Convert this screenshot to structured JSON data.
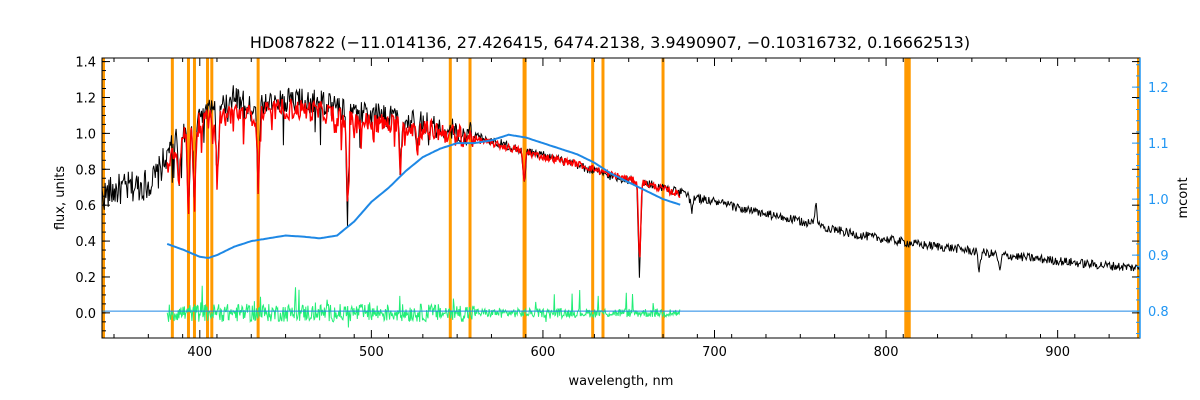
{
  "chart_data": {
    "type": "line",
    "title": "HD087822   (−11.014136, 27.426415, 6474.2138, 3.9490907, −0.10316732, 0.16662513)",
    "xlabel": "wavelength, nm",
    "ylabel": "flux, units",
    "y2label": "mcont",
    "xlim": [
      343,
      948
    ],
    "ylim": [
      -0.14,
      1.42
    ],
    "y2lim": [
      0.752,
      1.252
    ],
    "x_ticks": [
      400,
      500,
      600,
      700,
      800,
      900
    ],
    "y_ticks": [
      0.0,
      0.2,
      0.4,
      0.6,
      0.8,
      1.0,
      1.2,
      1.4
    ],
    "y_tick_labels": [
      "0.0",
      "0.2",
      "0.4",
      "0.6",
      "0.8",
      "1.0",
      "1.2",
      "1.4"
    ],
    "y2_ticks": [
      0.8,
      0.9,
      1.0,
      1.1,
      1.2
    ],
    "y2_tick_labels": [
      "0.8",
      "0.9",
      "1.0",
      "1.1",
      "1.2"
    ],
    "masked_lines_nm": [
      384,
      393.4,
      396.9,
      404.5,
      407,
      434,
      546,
      557.5,
      589,
      589.6,
      629,
      635,
      670,
      811.5,
      812.5,
      813.5
    ],
    "colors": {
      "observed": "#000000",
      "model": "#ff0000",
      "continuum": "#1e88e5",
      "residual": "#22ee77",
      "mask": "#ff9900",
      "y2axis": "#2196f3"
    },
    "series": [
      {
        "name": "observed flux",
        "axis": "left",
        "x": [
          343,
          350,
          360,
          370,
          375,
          380,
          385,
          390,
          395,
          400,
          405,
          410,
          420,
          430,
          440,
          450,
          460,
          470,
          480,
          490,
          500,
          510,
          520,
          530,
          540,
          550,
          560,
          570,
          580,
          590,
          600,
          610,
          620,
          630,
          640,
          650,
          660,
          670,
          680,
          690,
          700,
          720,
          740,
          760,
          780,
          800,
          820,
          840,
          860,
          880,
          900,
          920,
          948
        ],
        "y": [
          0.65,
          0.68,
          0.7,
          0.72,
          0.76,
          0.86,
          0.96,
          1.0,
          1.08,
          1.1,
          1.13,
          1.16,
          1.2,
          1.15,
          1.16,
          1.19,
          1.18,
          1.18,
          1.15,
          1.12,
          1.1,
          1.09,
          1.08,
          1.06,
          1.03,
          1.01,
          0.99,
          0.96,
          0.93,
          0.9,
          0.88,
          0.85,
          0.82,
          0.79,
          0.76,
          0.74,
          0.72,
          0.7,
          0.67,
          0.64,
          0.62,
          0.57,
          0.53,
          0.49,
          0.44,
          0.41,
          0.38,
          0.36,
          0.33,
          0.31,
          0.29,
          0.27,
          0.25
        ]
      },
      {
        "name": "model fit",
        "axis": "left",
        "x": [
          381,
          390,
          400,
          410,
          420,
          430,
          440,
          450,
          460,
          470,
          480,
          490,
          500,
          520,
          540,
          560,
          580,
          600,
          620,
          640,
          660,
          680
        ],
        "y": [
          0.85,
          0.97,
          1.06,
          1.08,
          1.12,
          1.1,
          1.12,
          1.14,
          1.13,
          1.12,
          1.1,
          1.06,
          1.06,
          1.04,
          1.01,
          0.97,
          0.92,
          0.87,
          0.83,
          0.77,
          0.72,
          0.66
        ]
      },
      {
        "name": "continuum (mcont)",
        "axis": "right",
        "x": [
          381,
          390,
          400,
          405,
          410,
          420,
          430,
          440,
          450,
          460,
          470,
          480,
          490,
          500,
          510,
          520,
          530,
          540,
          550,
          560,
          570,
          580,
          590,
          600,
          610,
          620,
          630,
          640,
          650,
          660,
          670,
          680
        ],
        "y": [
          0.92,
          0.91,
          0.897,
          0.895,
          0.9,
          0.915,
          0.925,
          0.93,
          0.935,
          0.933,
          0.93,
          0.935,
          0.96,
          0.995,
          1.02,
          1.05,
          1.075,
          1.09,
          1.1,
          1.1,
          1.105,
          1.115,
          1.11,
          1.1,
          1.09,
          1.08,
          1.065,
          1.045,
          1.03,
          1.015,
          1.0,
          0.99
        ]
      },
      {
        "name": "residual",
        "axis": "left",
        "x": [
          381,
          680
        ],
        "y": [
          0.0,
          0.0
        ]
      },
      {
        "name": "baseline (mcont 0.8)",
        "axis": "right",
        "x": [
          343,
          948
        ],
        "y": [
          0.8,
          0.8
        ]
      }
    ]
  }
}
